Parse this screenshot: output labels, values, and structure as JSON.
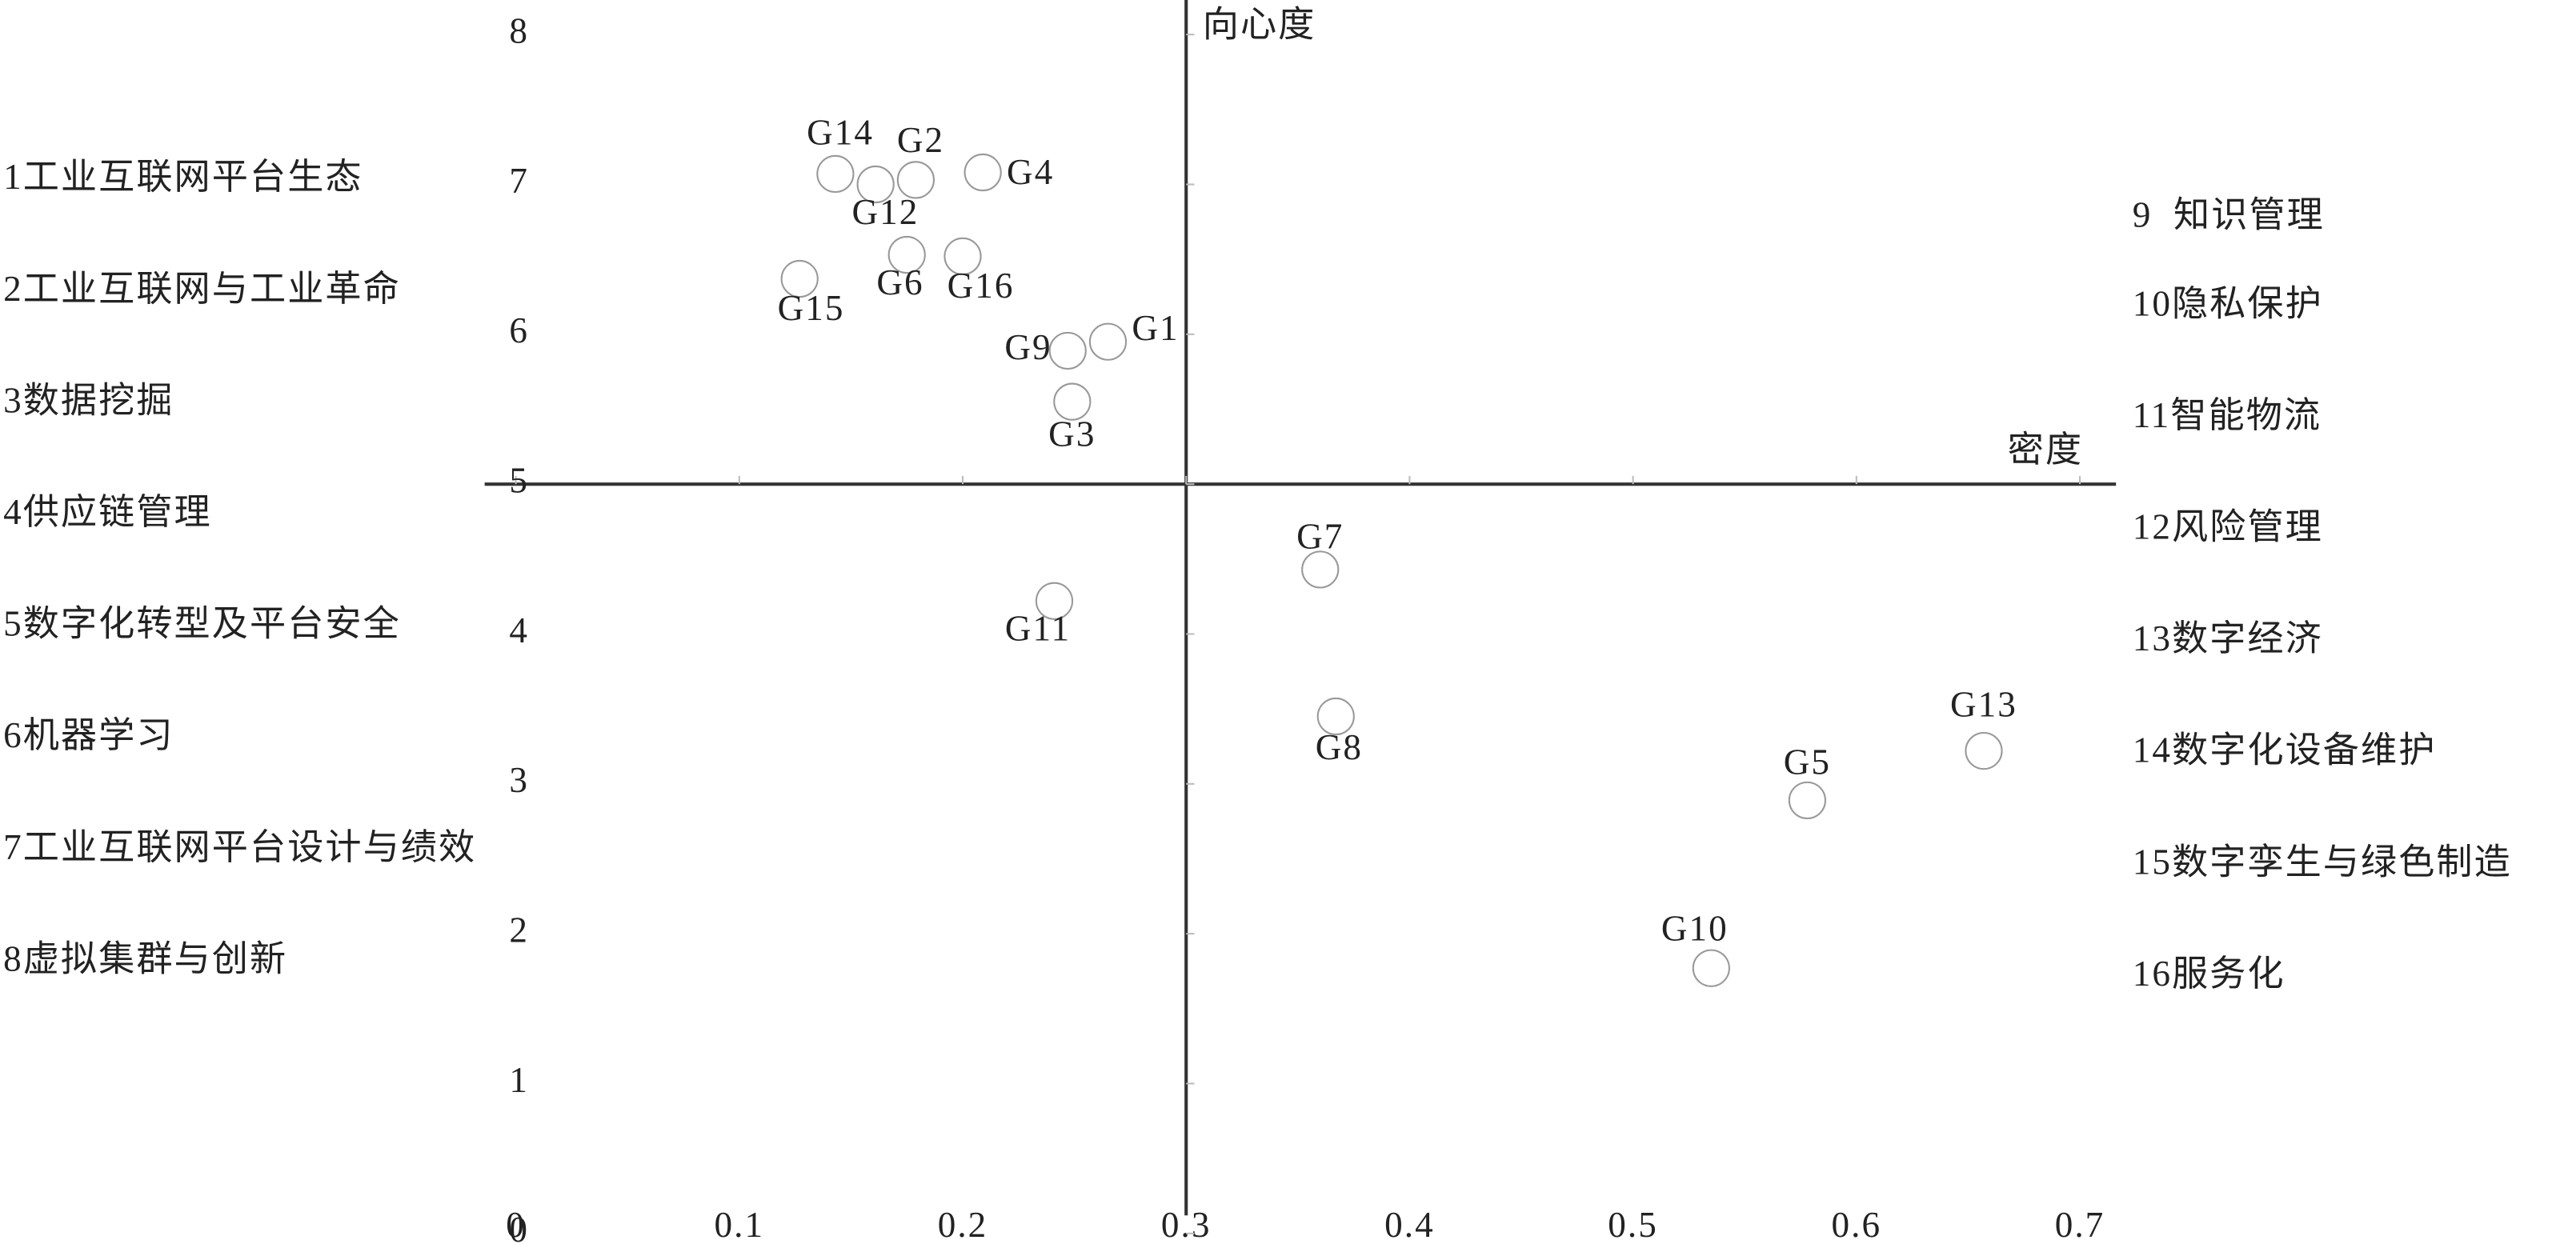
{
  "chart_data": {
    "type": "scatter",
    "x_label": "密度",
    "y_label": "向心度",
    "xlim": [
      0,
      0.7
    ],
    "ylim": [
      0,
      8
    ],
    "xticks": [
      0,
      0.1,
      0.2,
      0.3,
      0.4,
      0.5,
      0.6,
      0.7
    ],
    "yticks": [
      0,
      1,
      2,
      3,
      4,
      5,
      6,
      7,
      8
    ],
    "origin": [
      0.3,
      5
    ],
    "labels": [
      "G1",
      "G2",
      "G3",
      "G4",
      "G5",
      "G6",
      "G7",
      "G8",
      "G9",
      "G10",
      "G11",
      "G12",
      "G13",
      "G14",
      "G15",
      "G16"
    ],
    "x": [
      0.265,
      0.179,
      0.249,
      0.209,
      0.578,
      0.175,
      0.36,
      0.367,
      0.247,
      0.535,
      0.241,
      0.161,
      0.657,
      0.143,
      0.127,
      0.2
    ],
    "y": [
      5.95,
      7.03,
      5.55,
      7.08,
      2.89,
      6.53,
      4.43,
      3.45,
      5.89,
      1.77,
      4.22,
      7.0,
      3.22,
      7.07,
      6.37,
      6.52
    ],
    "color": "#999999",
    "legend_left": [
      "1工业互联网平台生态",
      "2工业互联网与工业革命",
      "3数据挖掘",
      "4供应链管理",
      "5数字化转型及平台安全",
      "6机器学习",
      "7工业互联网平台设计与绩效",
      "8虚拟集群与创新"
    ],
    "legend_right": [
      "9  知识管理",
      "10隐私保护",
      "11智能物流",
      "12风险管理",
      "13数字经济",
      "14数字化设备维护",
      "15数字孪生与绿色制造",
      "16服务化"
    ]
  }
}
